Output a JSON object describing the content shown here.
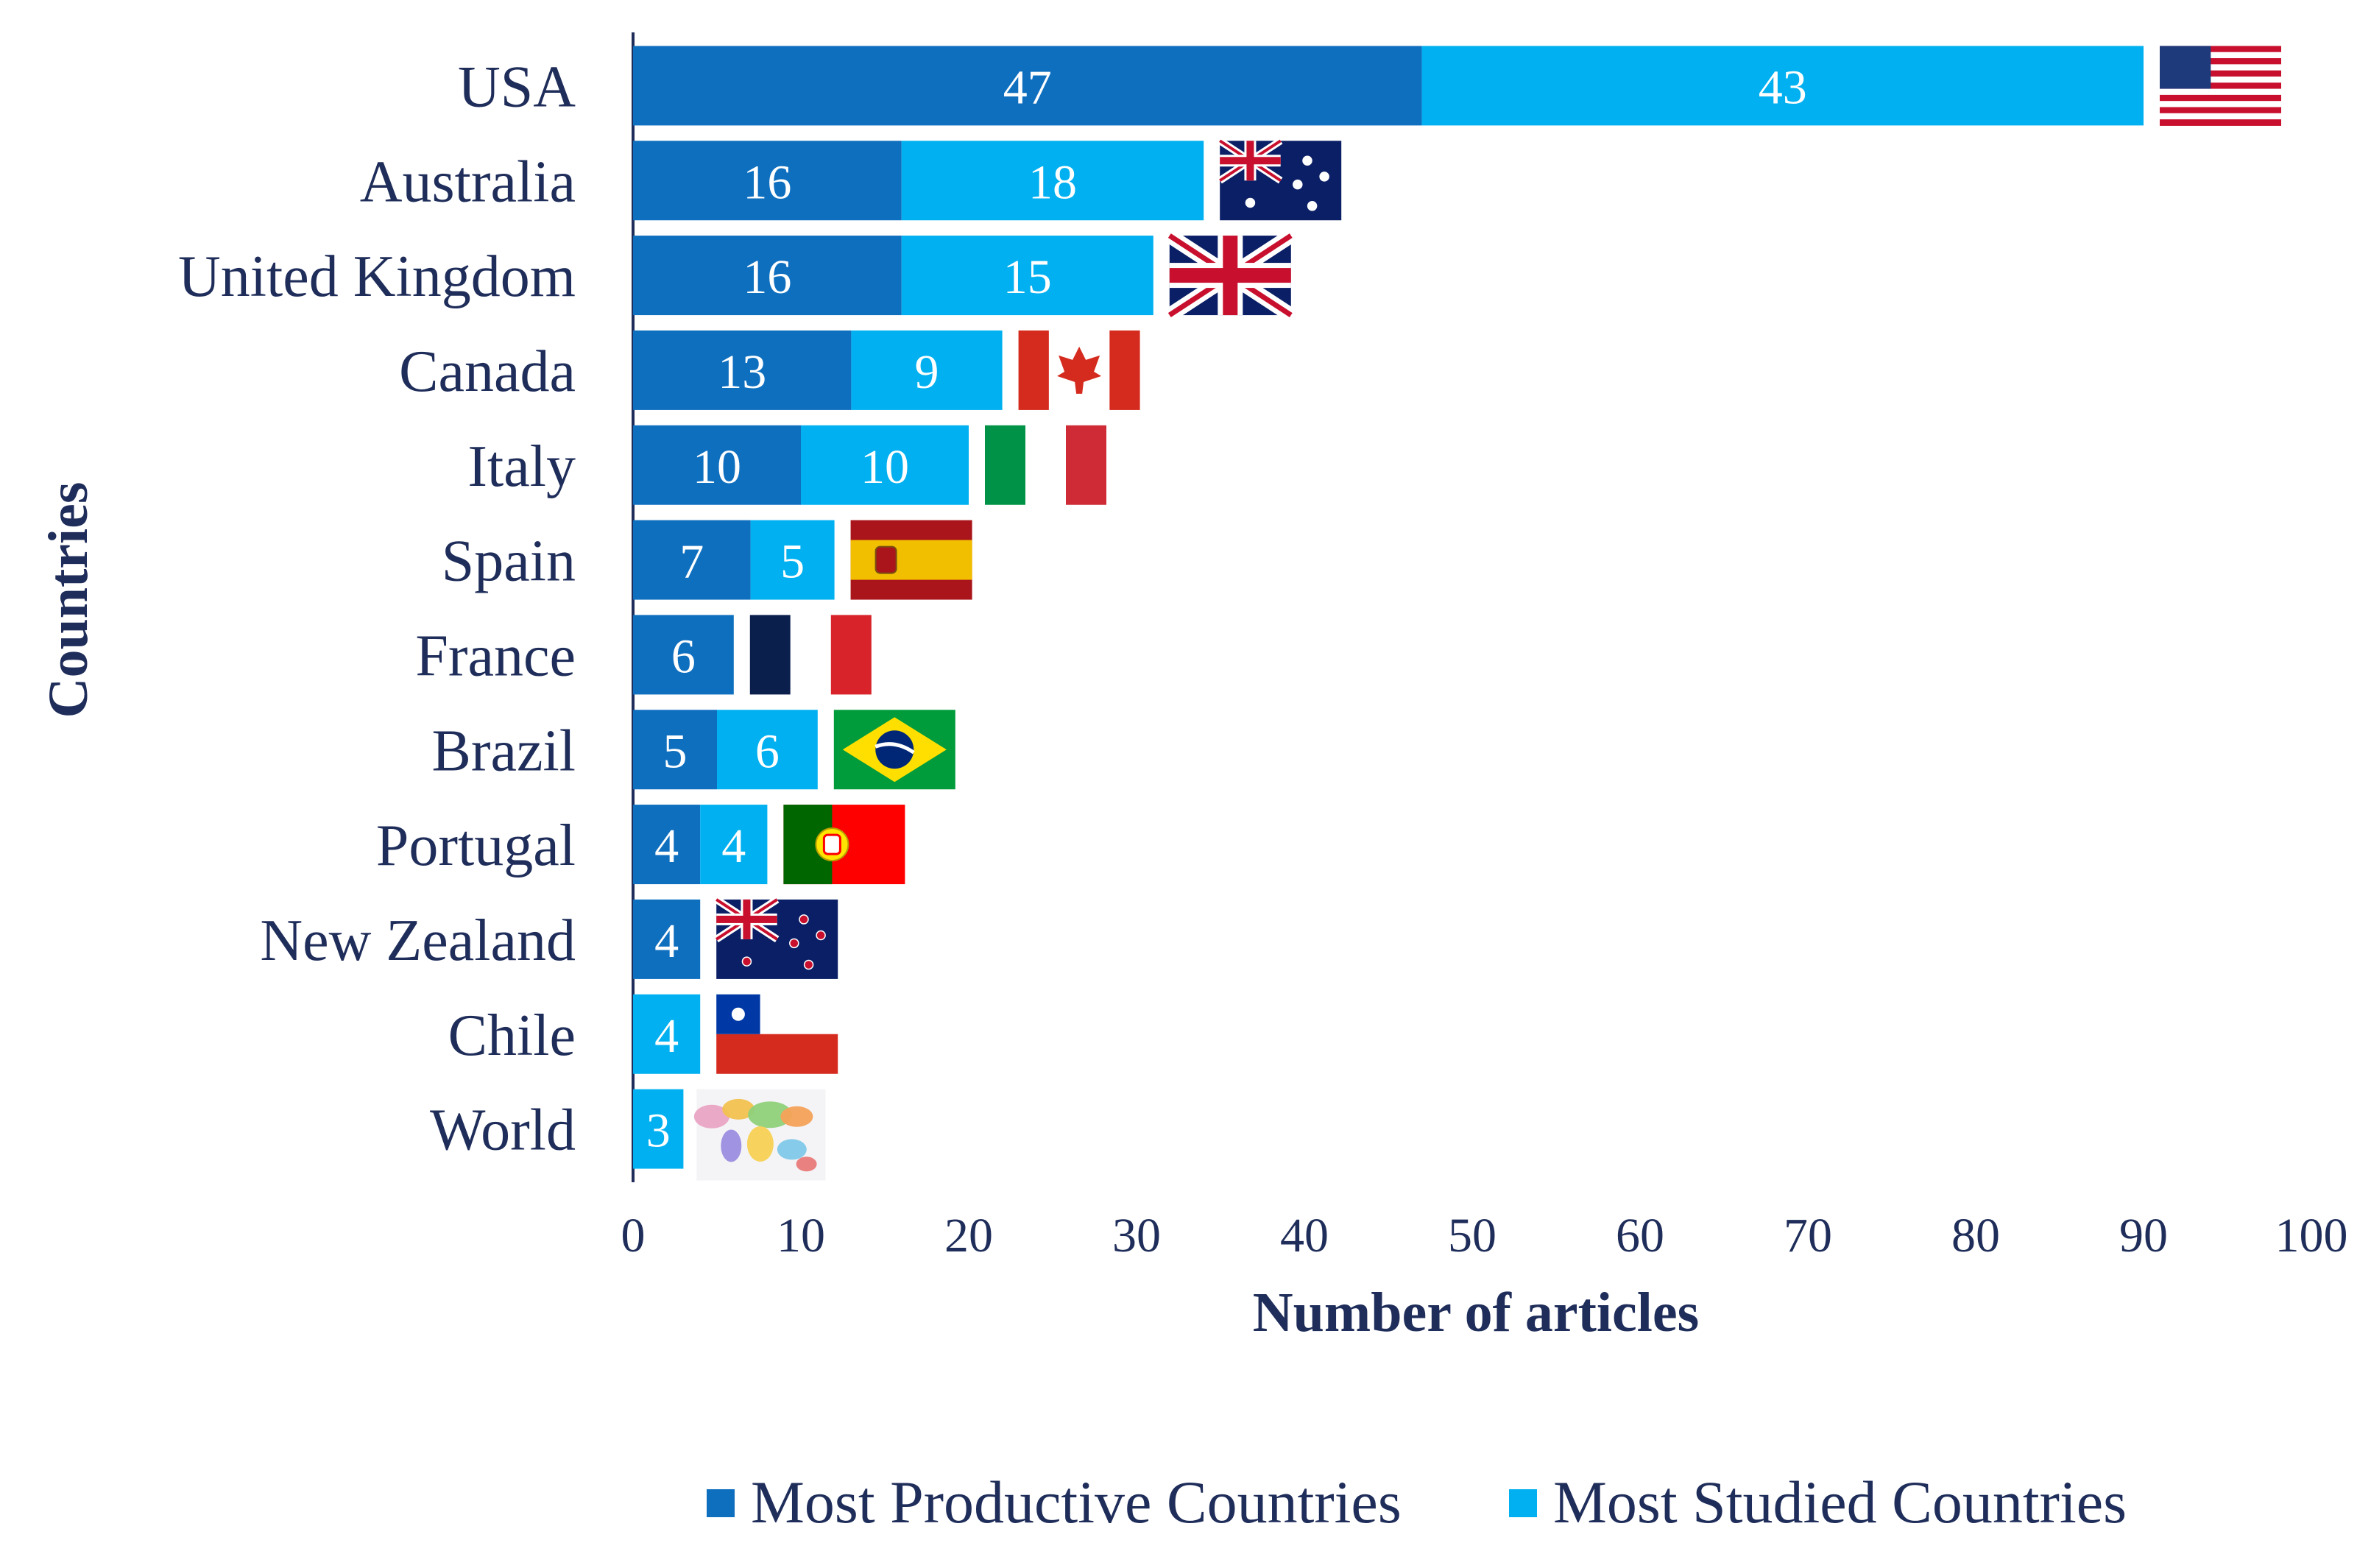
{
  "chart_data": {
    "type": "bar",
    "orientation": "horizontal",
    "stacked": true,
    "title": "",
    "xlabel": "Number of articles",
    "ylabel": "Countries",
    "xlim": [
      0,
      100
    ],
    "xticks": [
      0,
      10,
      20,
      30,
      40,
      50,
      60,
      70,
      80,
      90,
      100
    ],
    "categories": [
      "USA",
      "Australia",
      "United Kingdom",
      "Canada",
      "Italy",
      "Spain",
      "France",
      "Brazil",
      "Portugal",
      "New Zealand",
      "Chile",
      "World"
    ],
    "series": [
      {
        "name": "Most Productive Countries",
        "color": "#0F6FBF",
        "values": [
          47,
          16,
          16,
          13,
          10,
          7,
          6,
          5,
          4,
          4,
          0,
          0
        ]
      },
      {
        "name": "Most Studied Countries",
        "color": "#00B0F0",
        "values": [
          43,
          18,
          15,
          9,
          10,
          5,
          0,
          6,
          4,
          0,
          4,
          3
        ]
      }
    ],
    "flags": [
      "us-flag",
      "australia-flag",
      "uk-flag",
      "canada-flag",
      "italy-flag",
      "spain-flag",
      "france-flag",
      "brazil-flag",
      "portugal-flag",
      "new-zealand-flag",
      "chile-flag",
      "world-map"
    ],
    "legend": "bottom",
    "grid": false
  },
  "colors": {
    "text": "#1F2D5A",
    "axis": "#1F2D5A",
    "label_on_bar": "#FFFFFF"
  }
}
